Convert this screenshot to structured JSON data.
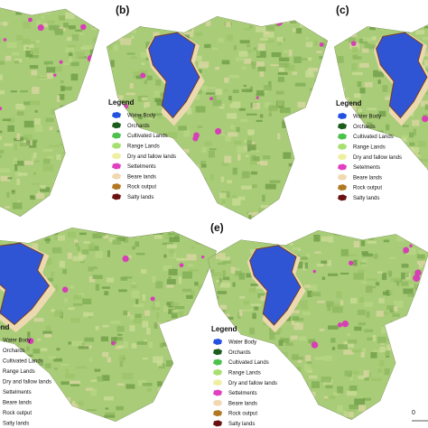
{
  "panels": [
    {
      "label": "(b)",
      "legend": {
        "title": "Legend",
        "items": [
          "Water Body",
          "Orchards",
          "Cultivated Lands",
          "Range Lands",
          "Dry and fallow lands",
          "Settelments",
          "Beare lands",
          "Rock output",
          "Salty lands"
        ]
      }
    },
    {
      "label": "(c)",
      "legend": {
        "title": "Legend",
        "items": [
          "Water Body",
          "Orchards",
          "Cultivated Lands",
          "Range Lands",
          "Dry and fallow lands",
          "Setelments",
          "Beare lands",
          "Rock output",
          "Salty lands"
        ]
      }
    },
    {
      "legend": {
        "title": "Legend",
        "items": [
          "Water Body",
          "Orchards",
          "Cultivated Lands",
          "Range Lands",
          "Dry and fallow lands",
          "Settelments",
          "Beare lands",
          "Rock output",
          "Salty lands"
        ]
      }
    },
    {
      "label": "(e)",
      "legend": {
        "title": "Legend",
        "items": [
          "Water Body",
          "Orchards",
          "Cultivated Lands",
          "Range Lands",
          "Dry and fallow lands",
          "Settelments",
          "Beare lands",
          "Rock output",
          "Salty lands"
        ]
      }
    }
  ],
  "scale_label": "0"
}
